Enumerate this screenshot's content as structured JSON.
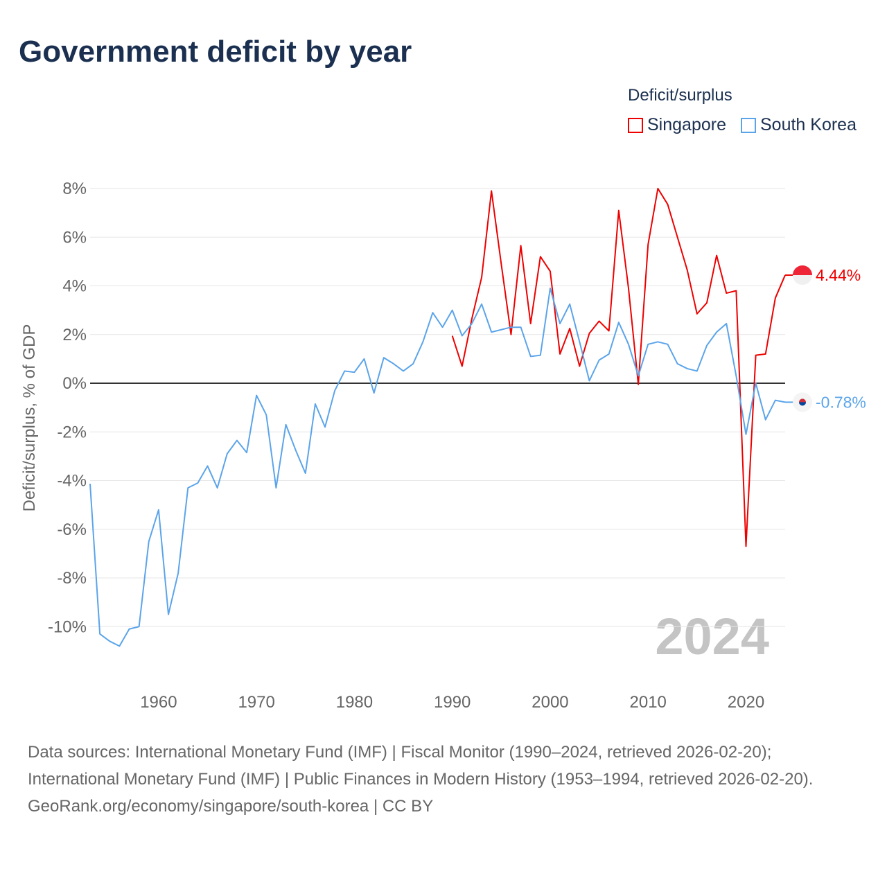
{
  "title": "Government deficit by year",
  "legend": {
    "title": "Deficit/surplus",
    "items": [
      {
        "label": "Singapore",
        "color": "#ee0000"
      },
      {
        "label": "South Korea",
        "color": "#5ba4ea"
      }
    ]
  },
  "current_year": "2024",
  "footer": {
    "sources": "Data sources: International Monetary Fund (IMF) | Fiscal Monitor (1990–2024, retrieved 2026-02-20); International Monetary Fund (IMF) | Public Finances in Modern History (1953–1994, retrieved 2026-02-20).",
    "credit": "GeoRank.org/economy/singapore/south-korea | CC BY"
  },
  "chart_data": {
    "type": "line",
    "title": "Government deficit by year",
    "xlabel": "",
    "ylabel": "Deficit/surplus, % of GDP",
    "ylim": [
      -10,
      8
    ],
    "xlim": [
      1953,
      2024
    ],
    "yticks": [
      8,
      6,
      4,
      2,
      0,
      -2,
      -4,
      -6,
      -8,
      -10
    ],
    "ytick_labels": [
      "8%",
      "6%",
      "4%",
      "2%",
      "0%",
      "-2%",
      "-4%",
      "-6%",
      "-8%",
      "-10%"
    ],
    "xticks": [
      1960,
      1970,
      1980,
      1990,
      2000,
      2010,
      2020
    ],
    "xtick_labels": [
      "1960",
      "1970",
      "1980",
      "1990",
      "2000",
      "2010",
      "2020"
    ],
    "grid": true,
    "legend_position": "top-right",
    "series": [
      {
        "name": "Singapore",
        "color": "#ee0000",
        "end_label": "4.44%",
        "start_year": 1990,
        "values": [
          1.95,
          0.7,
          2.65,
          4.35,
          7.9,
          4.9,
          2.0,
          5.65,
          2.45,
          5.2,
          4.6,
          1.2,
          2.25,
          0.7,
          2.05,
          2.55,
          2.15,
          7.1,
          3.9,
          -0.05,
          5.7,
          8.0,
          7.35,
          6.0,
          4.65,
          2.85,
          3.3,
          5.25,
          3.7,
          3.8,
          -6.7,
          1.15,
          1.2,
          3.5,
          4.44
        ]
      },
      {
        "name": "South Korea",
        "color": "#5ba4ea",
        "end_label": "-0.78%",
        "start_year": 1953,
        "values": [
          -4.13,
          -10.3,
          -10.6,
          -10.8,
          -10.1,
          -10.0,
          -6.5,
          -5.2,
          -9.5,
          -7.8,
          -4.3,
          -4.1,
          -3.4,
          -4.3,
          -2.9,
          -2.35,
          -2.85,
          -0.5,
          -1.3,
          -4.3,
          -1.7,
          -2.75,
          -3.7,
          -0.85,
          -1.8,
          -0.3,
          0.5,
          0.45,
          1.0,
          -0.4,
          1.05,
          0.8,
          0.5,
          0.8,
          1.7,
          2.9,
          2.3,
          3.0,
          1.95,
          2.45,
          3.25,
          2.1,
          2.2,
          2.3,
          2.3,
          1.1,
          1.15,
          3.9,
          2.45,
          3.25,
          1.7,
          0.1,
          0.95,
          1.2,
          2.5,
          1.6,
          0.3,
          1.6,
          1.7,
          1.6,
          0.8,
          0.6,
          0.5,
          1.55,
          2.1,
          2.45,
          0.3,
          -2.1,
          0.0,
          -1.5,
          -0.7,
          -0.78
        ]
      }
    ]
  }
}
